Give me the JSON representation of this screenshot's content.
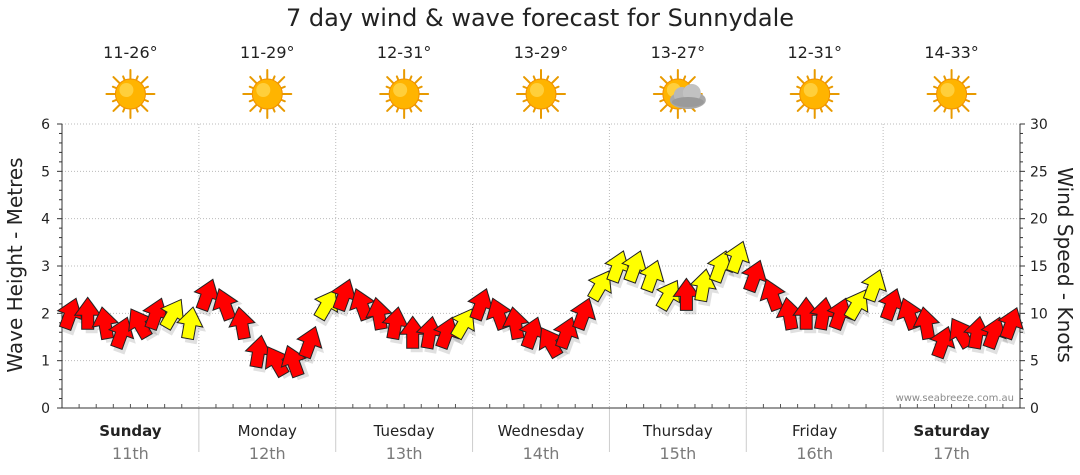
{
  "chart_data": {
    "type": "line",
    "title": "7 day wind & wave forecast for Sunnydale",
    "ylabel_left": "Wave Height - Metres",
    "ylabel_right": "Wind Speed - Knots",
    "ylim_left": [
      0,
      6
    ],
    "ylim_right": [
      0,
      30
    ],
    "yticks_left": [
      "0",
      "1",
      "2",
      "3",
      "4",
      "5",
      "6"
    ],
    "yticks_right": [
      "0",
      "5",
      "10",
      "15",
      "20",
      "25",
      "30"
    ],
    "grid": true,
    "credit": "www.seabreeze.com.au",
    "days": [
      {
        "name": "Sunday",
        "date": "11th",
        "temp": "11-26°",
        "icon": "sun-icon",
        "bold": true
      },
      {
        "name": "Monday",
        "date": "12th",
        "temp": "11-29°",
        "icon": "sun-icon",
        "bold": false
      },
      {
        "name": "Tuesday",
        "date": "13th",
        "temp": "12-31°",
        "icon": "sun-icon",
        "bold": false
      },
      {
        "name": "Wednesday",
        "date": "14th",
        "temp": "13-29°",
        "icon": "sun-icon",
        "bold": false
      },
      {
        "name": "Thursday",
        "date": "15th",
        "temp": "13-27°",
        "icon": "sun-cloud-icon",
        "bold": false
      },
      {
        "name": "Friday",
        "date": "16th",
        "temp": "12-31°",
        "icon": "sun-icon",
        "bold": false
      },
      {
        "name": "Saturday",
        "date": "17th",
        "temp": "14-33°",
        "icon": "sun-icon",
        "bold": true
      }
    ],
    "arrow_colors": {
      "red": "#ff0000",
      "yellow": "#ffff00"
    },
    "wind_series": {
      "name": "Wind Speed",
      "unit": "knots",
      "samples_per_day": 8,
      "values": [
        10,
        10,
        9,
        8,
        9,
        10,
        10,
        9,
        12,
        11,
        9,
        6,
        5,
        5,
        7,
        11,
        12,
        11,
        10,
        9,
        8,
        8,
        8,
        9,
        11,
        10,
        9,
        8,
        7,
        8,
        10,
        13,
        15,
        15,
        14,
        12,
        12,
        13,
        15,
        16,
        14,
        12,
        10,
        10,
        10,
        10,
        11,
        13,
        11,
        10,
        9,
        7,
        8,
        8,
        8,
        9
      ],
      "directions": [
        20,
        0,
        350,
        20,
        330,
        20,
        30,
        10,
        20,
        340,
        350,
        10,
        330,
        340,
        20,
        30,
        20,
        340,
        350,
        10,
        0,
        10,
        20,
        30,
        20,
        340,
        350,
        20,
        330,
        20,
        20,
        30,
        20,
        20,
        20,
        30,
        0,
        10,
        20,
        20,
        20,
        340,
        350,
        0,
        10,
        20,
        30,
        20,
        20,
        340,
        350,
        20,
        330,
        10,
        20,
        20
      ],
      "color_class": [
        "red",
        "red",
        "red",
        "red",
        "red",
        "red",
        "yellow",
        "yellow",
        "red",
        "red",
        "red",
        "red",
        "red",
        "red",
        "red",
        "yellow",
        "red",
        "red",
        "red",
        "red",
        "red",
        "red",
        "red",
        "yellow",
        "red",
        "red",
        "red",
        "red",
        "red",
        "red",
        "red",
        "yellow",
        "yellow",
        "yellow",
        "yellow",
        "yellow",
        "red",
        "yellow",
        "yellow",
        "yellow",
        "red",
        "red",
        "red",
        "red",
        "red",
        "red",
        "yellow",
        "yellow",
        "red",
        "red",
        "red",
        "red",
        "red",
        "red",
        "red",
        "red"
      ]
    }
  }
}
